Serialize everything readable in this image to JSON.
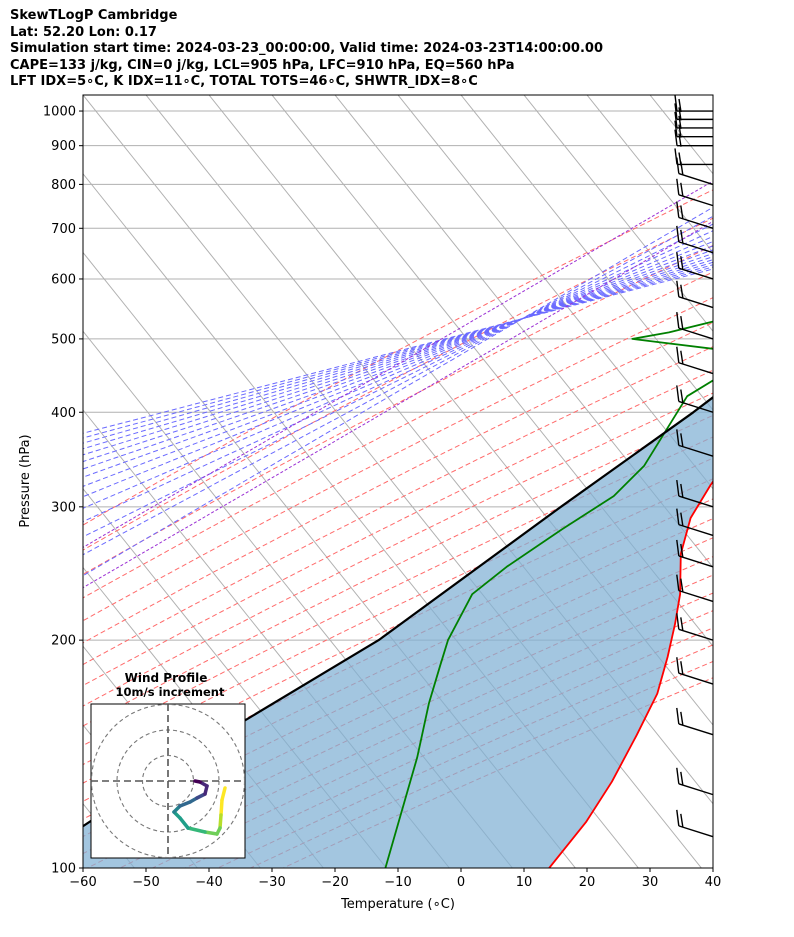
{
  "header": {
    "title": "SkewTLogP Cambridge",
    "location": "Lat: 52.20   Lon: 0.17",
    "times": "Simulation start time: 2024-03-23_00:00:00, Valid time: 2024-03-23T14:00:00.00",
    "indices1": "CAPE=133 j/kg, CIN=0 j/kg, LCL=905 hPa, LFC=910 hPa, EQ=560 hPa",
    "indices2": "LFT IDX=5∘C, K IDX=11∘C, TOTAL TOTS=46∘C, SHWTR_IDX=8∘C"
  },
  "chart_data": {
    "type": "line",
    "xlabel": "Temperature (∘C)",
    "ylabel": "Pressure (hPa)",
    "xlim": [
      -60,
      40
    ],
    "ylim": [
      1050,
      100
    ],
    "yscale": "log",
    "grid": true,
    "xticks": [
      -60,
      -50,
      -40,
      -30,
      -20,
      -10,
      0,
      10,
      20,
      30,
      40
    ],
    "xtick_labels": [
      "−60",
      "−50",
      "−40",
      "−30",
      "−20",
      "−10",
      "0",
      "10",
      "20",
      "30",
      "40"
    ],
    "yticks": [
      1000,
      900,
      800,
      700,
      600,
      500,
      400,
      300,
      200,
      100
    ],
    "ytick_labels": [
      "1000",
      "900",
      "800",
      "700",
      "600",
      "500",
      "400",
      "300",
      "200",
      "100"
    ],
    "colors": {
      "temperature": "#ff0000",
      "dewpoint": "#008000",
      "parcel": "#000000",
      "cape_fill": "#7fb0d4",
      "cin_fill": "#e8433f",
      "dry_adiabats": "#ff6b6b",
      "moist_adiabats": "#6a6aff",
      "mixing_ratio": "#9b30d4",
      "isotherms": "#b0b0b0"
    },
    "series": [
      {
        "key": "temperature",
        "points": [
          [
            9.5,
            1000
          ],
          [
            4,
            920
          ],
          [
            2,
            850
          ],
          [
            -2,
            750
          ],
          [
            -5,
            650
          ],
          [
            -8,
            580
          ],
          [
            -7,
            530
          ],
          [
            -4.5,
            510
          ],
          [
            -6.5,
            450
          ],
          [
            -9,
            400
          ],
          [
            -9.5,
            350
          ],
          [
            -9,
            320
          ],
          [
            -8,
            290
          ],
          [
            -5,
            260
          ],
          [
            0,
            230
          ],
          [
            3,
            210
          ],
          [
            6,
            190
          ],
          [
            9,
            170
          ],
          [
            11,
            150
          ],
          [
            13,
            130
          ],
          [
            14,
            115
          ],
          [
            14,
            100
          ]
        ]
      },
      {
        "key": "dewpoint",
        "points": [
          [
            2.5,
            1000
          ],
          [
            3,
            950
          ],
          [
            0,
            900
          ],
          [
            -6,
            800
          ],
          [
            -10,
            700
          ],
          [
            -12.5,
            630
          ],
          [
            -16,
            570
          ],
          [
            -35,
            510
          ],
          [
            -40,
            500
          ],
          [
            -21,
            480
          ],
          [
            -21,
            450
          ],
          [
            -24,
            420
          ],
          [
            -22,
            340
          ],
          [
            -23,
            310
          ],
          [
            -27,
            280
          ],
          [
            -31,
            250
          ],
          [
            -33,
            230
          ],
          [
            -31,
            200
          ],
          [
            -29,
            185
          ],
          [
            -26,
            165
          ],
          [
            -21,
            140
          ],
          [
            -12,
            100
          ]
        ]
      },
      {
        "key": "parcel",
        "points": [
          [
            9.5,
            1000
          ],
          [
            4.2,
            915
          ],
          [
            3.2,
            900
          ],
          [
            -1,
            800
          ],
          [
            -5,
            700
          ],
          [
            -9.5,
            600
          ],
          [
            -15,
            500
          ],
          [
            -21,
            400
          ],
          [
            -30,
            300
          ],
          [
            -42,
            200
          ],
          [
            -55,
            150
          ],
          [
            -70,
            100
          ]
        ]
      }
    ],
    "wind_barbs_pressure_hpa": [
      1000,
      975,
      950,
      925,
      900,
      850,
      800,
      750,
      700,
      650,
      600,
      550,
      500,
      450,
      400,
      350,
      300,
      275,
      250,
      225,
      200,
      175,
      150,
      125,
      110
    ],
    "hodograph": {
      "title": "Wind Profile",
      "subtitle": "10m/s increment",
      "colormap": "viridis",
      "rings": 3
    }
  }
}
